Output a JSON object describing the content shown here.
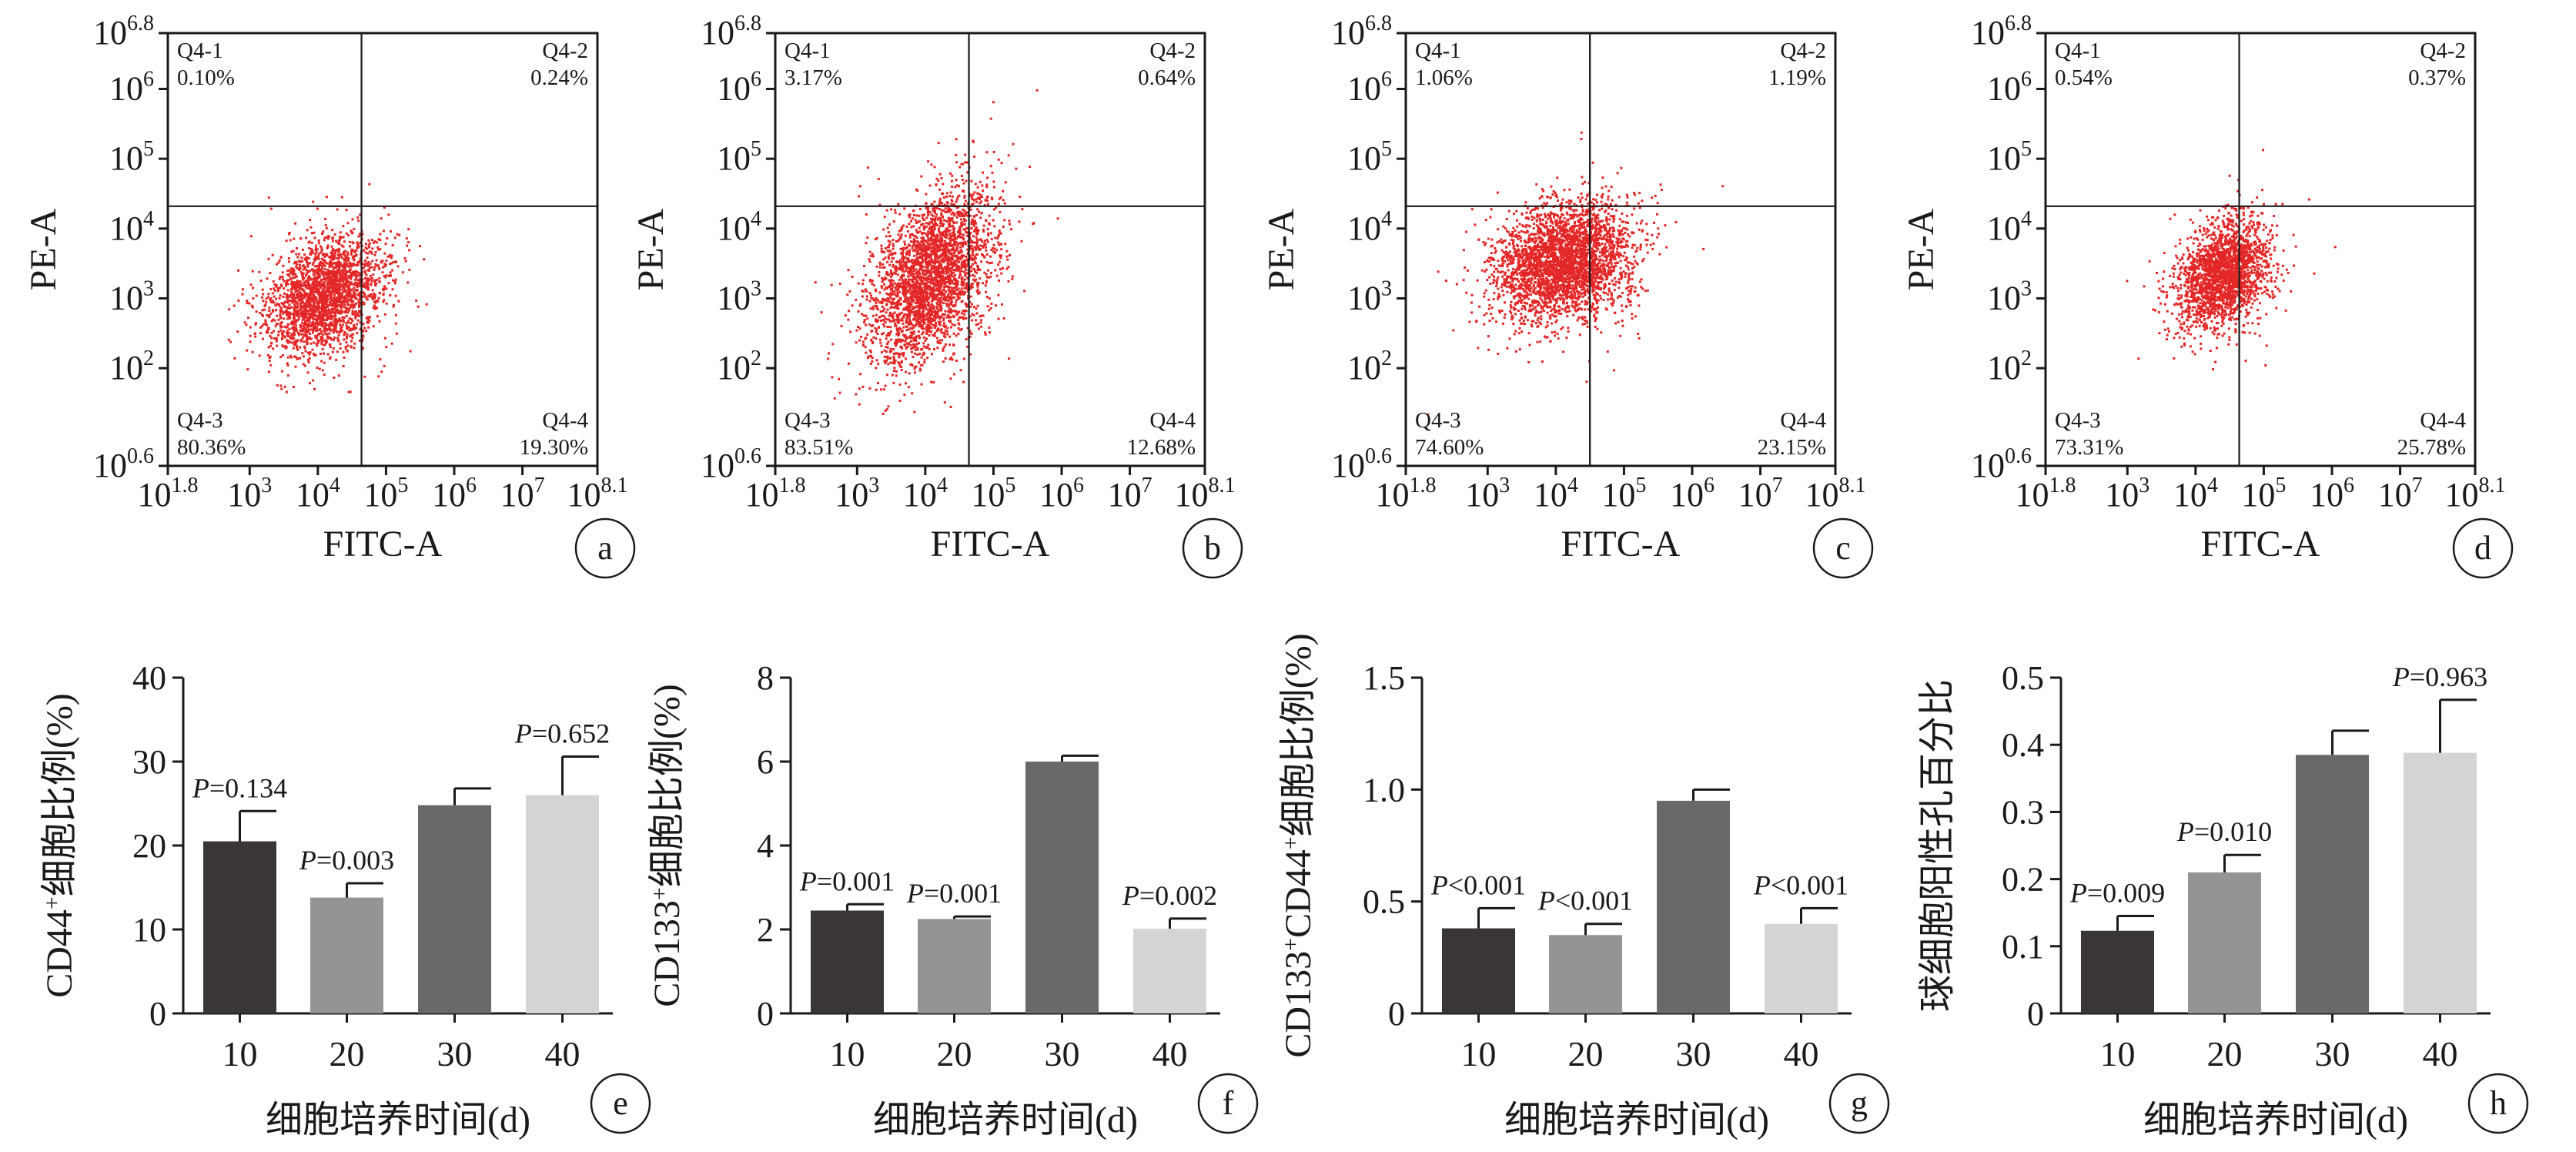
{
  "chart_data": [
    {
      "panel": "a",
      "type": "scatter",
      "xlabel": "FITC-A",
      "ylabel": "PE-A",
      "x_ticks": [
        {
          "base": "10",
          "exp": "1.8"
        },
        {
          "base": "10",
          "exp": "3"
        },
        {
          "base": "10",
          "exp": "4"
        },
        {
          "base": "10",
          "exp": "5"
        },
        {
          "base": "10",
          "exp": "6"
        },
        {
          "base": "10",
          "exp": "7"
        },
        {
          "base": "10",
          "exp": "8.1"
        }
      ],
      "y_ticks": [
        {
          "base": "10",
          "exp": "0.6"
        },
        {
          "base": "10",
          "exp": "2"
        },
        {
          "base": "10",
          "exp": "3"
        },
        {
          "base": "10",
          "exp": "4"
        },
        {
          "base": "10",
          "exp": "5"
        },
        {
          "base": "10",
          "exp": "6"
        },
        {
          "base": "10",
          "exp": "6.8"
        }
      ],
      "xlim_log10": [
        1.8,
        8.1
      ],
      "ylim_log10": [
        0.6,
        6.8
      ],
      "x_scale": "log",
      "y_scale": "log",
      "gate_log10": {
        "x": 4.64,
        "y": 4.32
      },
      "cluster_log10": {
        "cx": 4.1,
        "cy": 3.05,
        "sx": 0.42,
        "sy": 0.42,
        "n": 2400,
        "rho": 0.35
      },
      "quadrants": [
        {
          "name": "Q4-1",
          "value": "0.10%",
          "corner": "top-left"
        },
        {
          "name": "Q4-2",
          "value": "0.24%",
          "corner": "top-right"
        },
        {
          "name": "Q4-3",
          "value": "80.36%",
          "corner": "bottom-left"
        },
        {
          "name": "Q4-4",
          "value": "19.30%",
          "corner": "bottom-right"
        }
      ],
      "dot_color": "#e32626",
      "grid": false
    },
    {
      "panel": "b",
      "type": "scatter",
      "xlabel": "FITC-A",
      "ylabel": "PE-A",
      "x_ticks": [
        {
          "base": "10",
          "exp": "1.8"
        },
        {
          "base": "10",
          "exp": "3"
        },
        {
          "base": "10",
          "exp": "4"
        },
        {
          "base": "10",
          "exp": "5"
        },
        {
          "base": "10",
          "exp": "6"
        },
        {
          "base": "10",
          "exp": "7"
        },
        {
          "base": "10",
          "exp": "8.1"
        }
      ],
      "y_ticks": [
        {
          "base": "10",
          "exp": "0.6"
        },
        {
          "base": "10",
          "exp": "2"
        },
        {
          "base": "10",
          "exp": "3"
        },
        {
          "base": "10",
          "exp": "4"
        },
        {
          "base": "10",
          "exp": "5"
        },
        {
          "base": "10",
          "exp": "6"
        },
        {
          "base": "10",
          "exp": "6.8"
        }
      ],
      "xlim_log10": [
        1.8,
        8.1
      ],
      "ylim_log10": [
        0.6,
        6.8
      ],
      "x_scale": "log",
      "y_scale": "log",
      "gate_log10": {
        "x": 4.64,
        "y": 4.32
      },
      "cluster_log10": {
        "cx": 4.05,
        "cy": 3.3,
        "sx": 0.45,
        "sy": 0.62,
        "n": 3000,
        "rho": 0.45
      },
      "quadrants": [
        {
          "name": "Q4-1",
          "value": "3.17%",
          "corner": "top-left"
        },
        {
          "name": "Q4-2",
          "value": "0.64%",
          "corner": "top-right"
        },
        {
          "name": "Q4-3",
          "value": "83.51%",
          "corner": "bottom-left"
        },
        {
          "name": "Q4-4",
          "value": "12.68%",
          "corner": "bottom-right"
        }
      ],
      "dot_color": "#e32626",
      "grid": false
    },
    {
      "panel": "c",
      "type": "scatter",
      "xlabel": "FITC-A",
      "ylabel": "PE-A",
      "x_ticks": [
        {
          "base": "10",
          "exp": "1.8"
        },
        {
          "base": "10",
          "exp": "3"
        },
        {
          "base": "10",
          "exp": "4"
        },
        {
          "base": "10",
          "exp": "5"
        },
        {
          "base": "10",
          "exp": "6"
        },
        {
          "base": "10",
          "exp": "7"
        },
        {
          "base": "10",
          "exp": "8.1"
        }
      ],
      "y_ticks": [
        {
          "base": "10",
          "exp": "0.6"
        },
        {
          "base": "10",
          "exp": "2"
        },
        {
          "base": "10",
          "exp": "3"
        },
        {
          "base": "10",
          "exp": "4"
        },
        {
          "base": "10",
          "exp": "5"
        },
        {
          "base": "10",
          "exp": "6"
        },
        {
          "base": "10",
          "exp": "6.8"
        }
      ],
      "xlim_log10": [
        1.8,
        8.1
      ],
      "ylim_log10": [
        0.6,
        6.8
      ],
      "x_scale": "log",
      "y_scale": "log",
      "gate_log10": {
        "x": 4.5,
        "y": 4.32
      },
      "cluster_log10": {
        "cx": 4.1,
        "cy": 3.55,
        "sx": 0.5,
        "sy": 0.42,
        "n": 3200,
        "rho": 0.2
      },
      "quadrants": [
        {
          "name": "Q4-1",
          "value": "1.06%",
          "corner": "top-left"
        },
        {
          "name": "Q4-2",
          "value": "1.19%",
          "corner": "top-right"
        },
        {
          "name": "Q4-3",
          "value": "74.60%",
          "corner": "bottom-left"
        },
        {
          "name": "Q4-4",
          "value": "23.15%",
          "corner": "bottom-right"
        }
      ],
      "dot_color": "#e32626",
      "grid": false
    },
    {
      "panel": "d",
      "type": "scatter",
      "xlabel": "FITC-A",
      "ylabel": "PE-A",
      "x_ticks": [
        {
          "base": "10",
          "exp": "1.8"
        },
        {
          "base": "10",
          "exp": "3"
        },
        {
          "base": "10",
          "exp": "4"
        },
        {
          "base": "10",
          "exp": "5"
        },
        {
          "base": "10",
          "exp": "6"
        },
        {
          "base": "10",
          "exp": "7"
        },
        {
          "base": "10",
          "exp": "8.1"
        }
      ],
      "y_ticks": [
        {
          "base": "10",
          "exp": "0.6"
        },
        {
          "base": "10",
          "exp": "2"
        },
        {
          "base": "10",
          "exp": "3"
        },
        {
          "base": "10",
          "exp": "4"
        },
        {
          "base": "10",
          "exp": "5"
        },
        {
          "base": "10",
          "exp": "6"
        },
        {
          "base": "10",
          "exp": "6.8"
        }
      ],
      "xlim_log10": [
        1.8,
        8.1
      ],
      "ylim_log10": [
        0.6,
        6.8
      ],
      "x_scale": "log",
      "y_scale": "log",
      "gate_log10": {
        "x": 4.64,
        "y": 4.32
      },
      "cluster_log10": {
        "cx": 4.38,
        "cy": 3.35,
        "sx": 0.32,
        "sy": 0.38,
        "n": 2200,
        "rho": 0.3
      },
      "quadrants": [
        {
          "name": "Q4-1",
          "value": "0.54%",
          "corner": "top-left"
        },
        {
          "name": "Q4-2",
          "value": "0.37%",
          "corner": "top-right"
        },
        {
          "name": "Q4-3",
          "value": "73.31%",
          "corner": "bottom-left"
        },
        {
          "name": "Q4-4",
          "value": "25.78%",
          "corner": "bottom-right"
        }
      ],
      "dot_color": "#e32626",
      "grid": false
    },
    {
      "panel": "e",
      "type": "bar",
      "categories": [
        "10",
        "20",
        "30",
        "40"
      ],
      "values": [
        20.5,
        13.8,
        24.8,
        26.0
      ],
      "errors": [
        3.6,
        1.7,
        2.0,
        4.6
      ],
      "p_labels": [
        "=0.134",
        "=0.003",
        "",
        "=0.652"
      ],
      "p_prefix": "P",
      "bar_colors": [
        "#3a3638",
        "#949494",
        "#696969",
        "#d4d4d4"
      ],
      "ylabel": {
        "main": "CD44",
        "sup": "+",
        "rest": "细胞比例(%)"
      },
      "xlabel": "细胞培养时间(d)",
      "ylim": [
        0,
        40
      ],
      "yticks": [
        "0",
        "10",
        "20",
        "30",
        "40"
      ],
      "grid": false
    },
    {
      "panel": "f",
      "type": "bar",
      "categories": [
        "10",
        "20",
        "30",
        "40"
      ],
      "values": [
        2.45,
        2.25,
        6.0,
        2.02
      ],
      "errors": [
        0.15,
        0.06,
        0.14,
        0.24
      ],
      "p_labels": [
        "=0.001",
        "=0.001",
        "",
        "=0.002"
      ],
      "p_prefix": "P",
      "bar_colors": [
        "#3a3638",
        "#949494",
        "#696969",
        "#d4d4d4"
      ],
      "ylabel": {
        "main": "CD133",
        "sup": "+",
        "rest": "细胞比例(%)"
      },
      "xlabel": "细胞培养时间(d)",
      "ylim": [
        0,
        8
      ],
      "yticks": [
        "0",
        "2",
        "4",
        "6",
        "8"
      ],
      "grid": false
    },
    {
      "panel": "g",
      "type": "bar",
      "categories": [
        "10",
        "20",
        "30",
        "40"
      ],
      "values": [
        0.38,
        0.35,
        0.95,
        0.4
      ],
      "errors": [
        0.09,
        0.05,
        0.05,
        0.07
      ],
      "p_labels": [
        "<0.001",
        "<0.001",
        "",
        "<0.001"
      ],
      "p_prefix": "P",
      "bar_colors": [
        "#3a3638",
        "#949494",
        "#696969",
        "#d4d4d4"
      ],
      "ylabel": {
        "main": "CD133",
        "sup": "+",
        "main2": "CD44",
        "sup2": "+",
        "rest": "细胞比例(%)"
      },
      "xlabel": "细胞培养时间(d)",
      "ylim": [
        0,
        1.5
      ],
      "yticks": [
        "0",
        "0.5",
        "1.0",
        "1.5"
      ],
      "grid": false
    },
    {
      "panel": "h",
      "type": "bar",
      "categories": [
        "10",
        "20",
        "30",
        "40"
      ],
      "values": [
        0.123,
        0.21,
        0.385,
        0.388
      ],
      "errors": [
        0.022,
        0.026,
        0.036,
        0.079
      ],
      "p_labels": [
        "=0.009",
        "=0.010",
        "",
        "=0.963"
      ],
      "p_prefix": "P",
      "bar_colors": [
        "#3a3638",
        "#949494",
        "#696969",
        "#d4d4d4"
      ],
      "ylabel": {
        "rest": "球细胞阳性孔百分比"
      },
      "xlabel": "细胞培养时间(d)",
      "ylim": [
        0,
        0.5
      ],
      "yticks": [
        "0",
        "0.1",
        "0.2",
        "0.3",
        "0.4",
        "0.5"
      ],
      "grid": false
    }
  ]
}
